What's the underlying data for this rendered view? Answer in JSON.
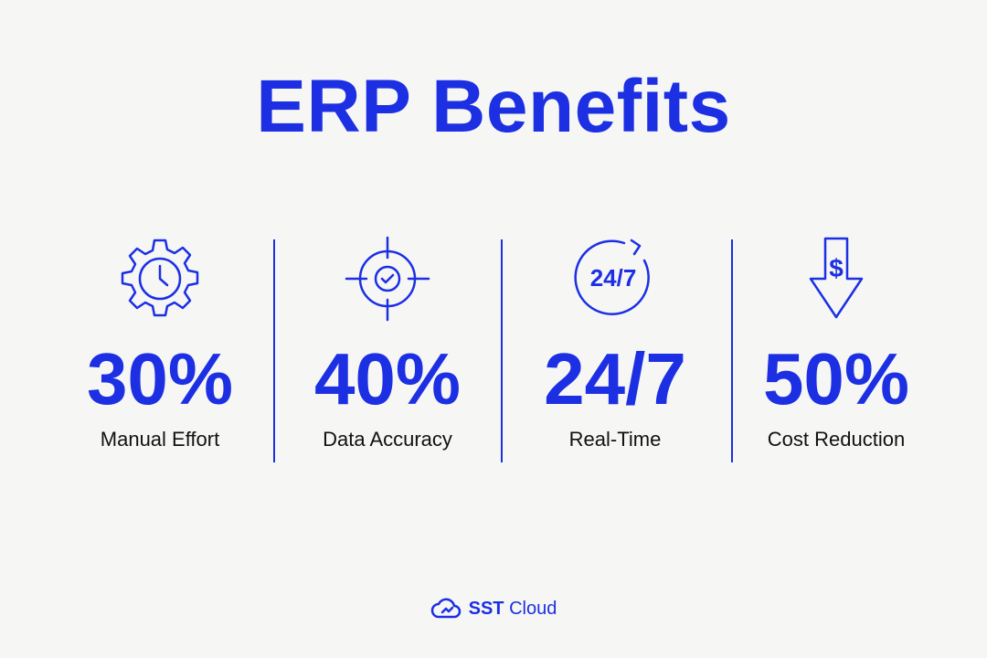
{
  "header": {
    "title": "ERP Benefits"
  },
  "stats": [
    {
      "value": "30%",
      "label": "Manual Effort"
    },
    {
      "value": "40%",
      "label": "Data Accuracy"
    },
    {
      "value": "24/7",
      "label": "Real-Time",
      "icon_text": "24/7"
    },
    {
      "value": "50%",
      "label": "Cost Reduction",
      "icon_text": "$"
    }
  ],
  "footer": {
    "brand_bold": "SST",
    "brand_light": "Cloud"
  }
}
